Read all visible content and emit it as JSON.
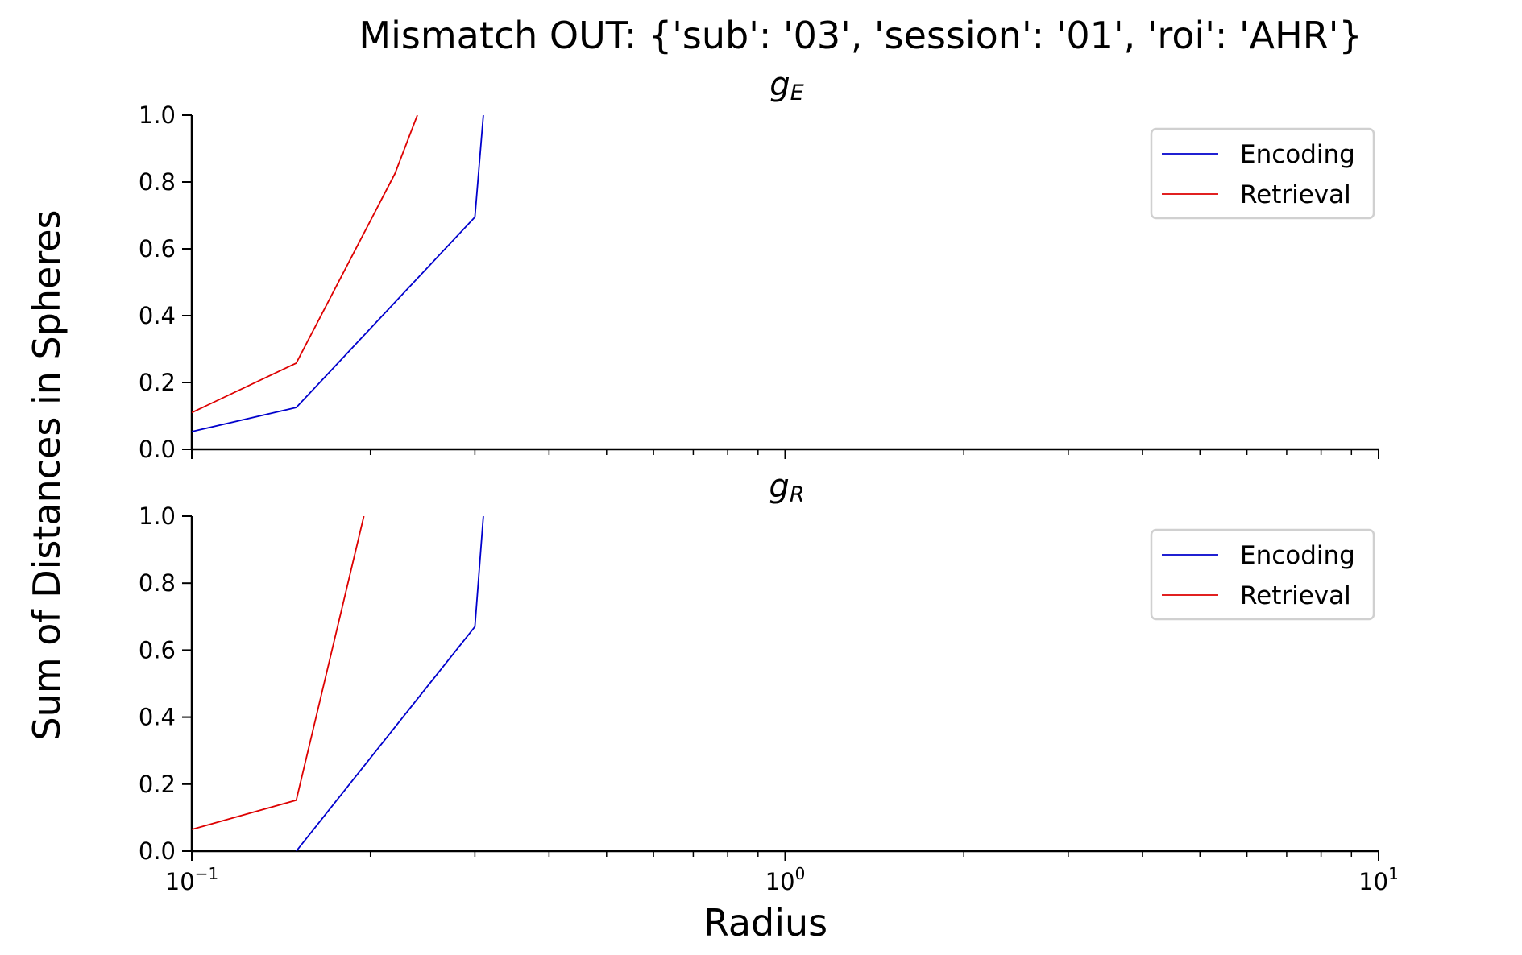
{
  "chart_data": {
    "type": "line",
    "title": "Mismatch OUT: {'sub': '03', 'session': '01', 'roi': 'AHR'}",
    "xlabel": "Radius",
    "ylabel": "Sum of Distances in Spheres",
    "xscale": "log",
    "xlim": [
      0.1,
      10
    ],
    "ylim": [
      0,
      1
    ],
    "x_ticks": [
      {
        "base": "10",
        "exp": "−1",
        "value": 0.1
      },
      {
        "base": "10",
        "exp": "0",
        "value": 1
      },
      {
        "base": "10",
        "exp": "1",
        "value": 10
      }
    ],
    "y_ticks": [
      "0.0",
      "0.2",
      "0.4",
      "0.6",
      "0.8",
      "1.0"
    ],
    "legend_placement": "upper right",
    "grid": false,
    "subplots": [
      {
        "title_base": "g",
        "title_sub": "E",
        "series": [
          {
            "name": "Encoding",
            "color": "#0000cc",
            "x": [
              0.1,
              0.15,
              0.3,
              0.31
            ],
            "y": [
              0.053,
              0.125,
              0.695,
              1.0
            ]
          },
          {
            "name": "Retrieval",
            "color": "#dd0000",
            "x": [
              0.1,
              0.15,
              0.22,
              0.24
            ],
            "y": [
              0.11,
              0.258,
              0.825,
              1.0
            ]
          }
        ]
      },
      {
        "title_base": "g",
        "title_sub": "R",
        "series": [
          {
            "name": "Encoding",
            "color": "#0000cc",
            "x": [
              0.15,
              0.3,
              0.31
            ],
            "y": [
              0.0,
              0.67,
              1.0
            ]
          },
          {
            "name": "Retrieval",
            "color": "#dd0000",
            "x": [
              0.1,
              0.15,
              0.195
            ],
            "y": [
              0.065,
              0.152,
              1.0
            ]
          }
        ]
      }
    ]
  }
}
